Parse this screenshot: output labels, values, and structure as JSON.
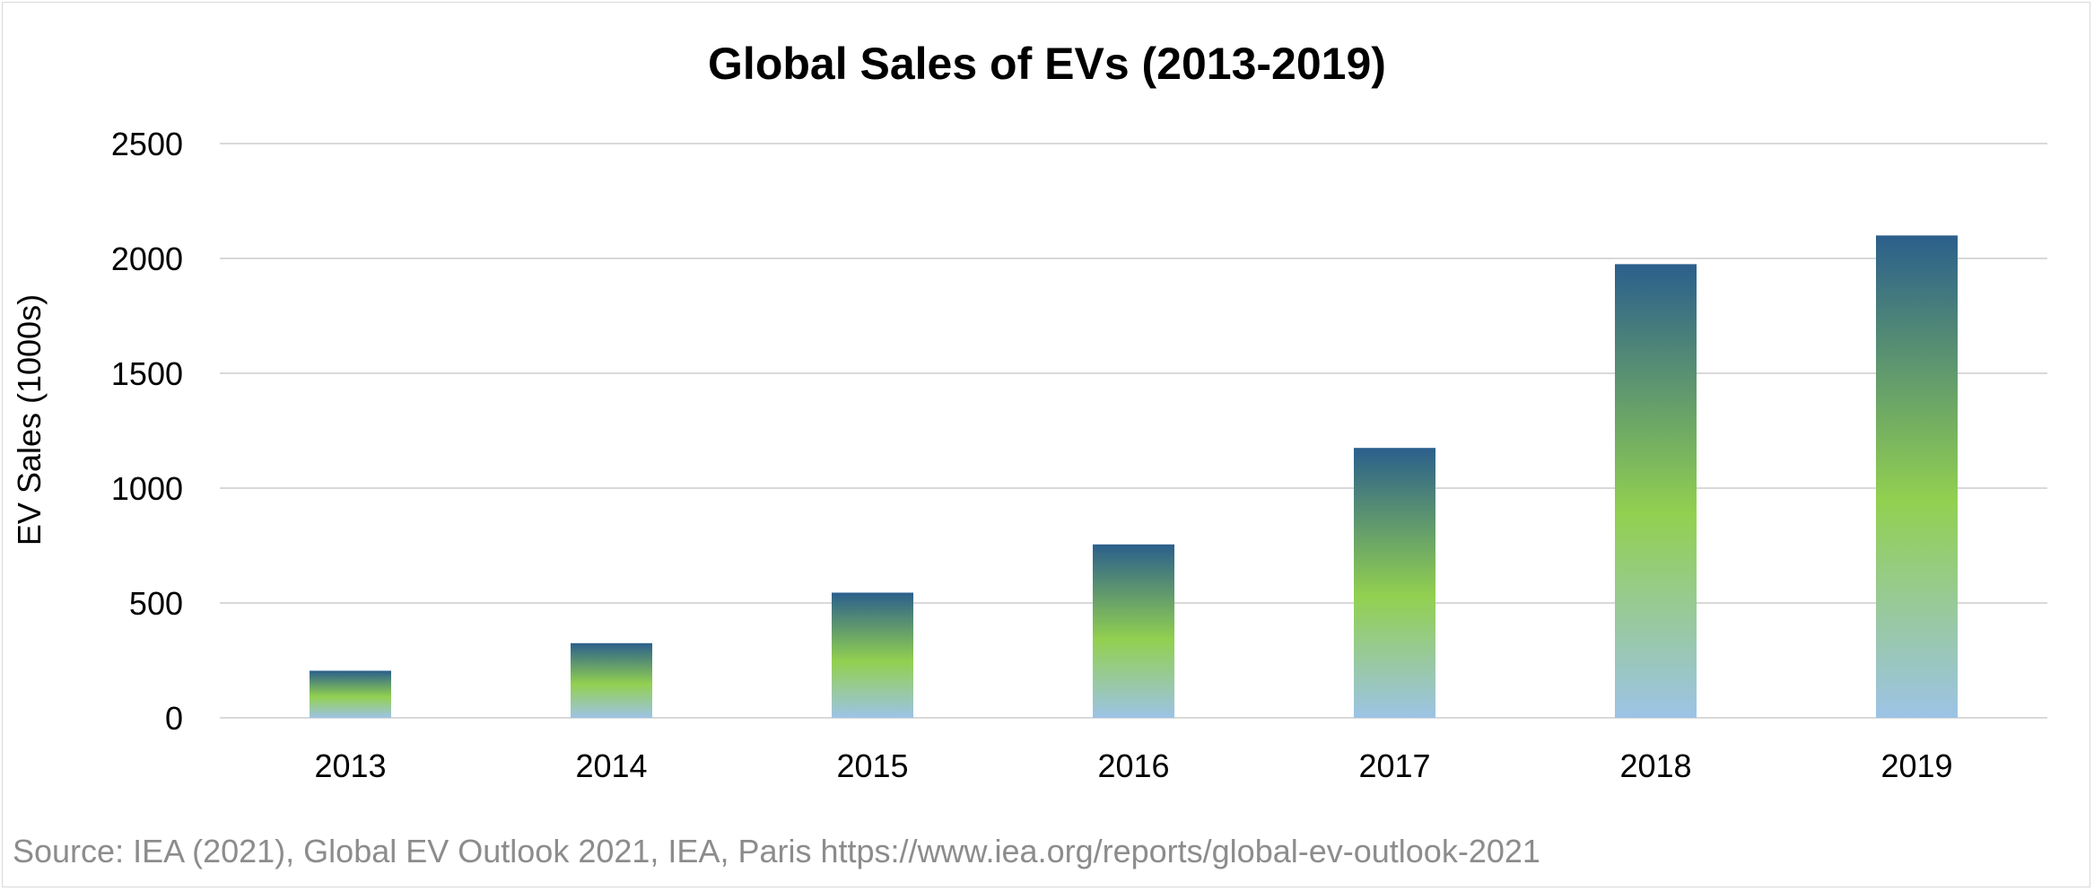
{
  "chart_data": {
    "type": "bar",
    "title": "Global Sales of EVs (2013-2019)",
    "xlabel": "",
    "ylabel": "EV Sales (1000s)",
    "categories": [
      "2013",
      "2014",
      "2015",
      "2016",
      "2017",
      "2018",
      "2019"
    ],
    "values": [
      205,
      325,
      545,
      755,
      1175,
      1975,
      2100
    ],
    "ylim": [
      0,
      2500
    ],
    "yticks": [
      0,
      500,
      1000,
      1500,
      2000,
      2500
    ],
    "grid": true,
    "legend": "none",
    "bar_gradient": [
      "#2b5f8c",
      "#92d050",
      "#9dc3e6"
    ],
    "gridline_color": "#d9d9d9"
  },
  "source_text": "Source: IEA (2021), Global EV Outlook 2021, IEA, Paris https://www.iea.org/reports/global-ev-outlook-2021"
}
